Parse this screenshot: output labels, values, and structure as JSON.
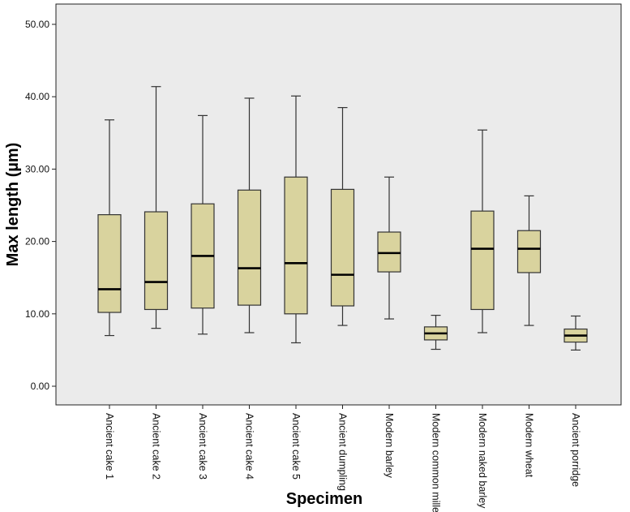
{
  "chart_data": {
    "type": "boxplot",
    "title": "",
    "xlabel": "Specimen",
    "ylabel": "Max length (µm)",
    "ylim": [
      0,
      50
    ],
    "yticks": [
      0,
      10,
      20,
      30,
      40,
      50
    ],
    "ytick_labels": [
      "0.00",
      "10.00",
      "20.00",
      "30.00",
      "40.00",
      "50.00"
    ],
    "grid": false,
    "box_color": "#d9d39e",
    "plot_background": "#ebebeb",
    "categories": [
      "Ancient cake 1",
      "Ancient cake 2",
      "Ancient cake 3",
      "Ancient cake 4",
      "Ancient cake 5",
      "Ancient dumpling",
      "Modern barley",
      "Modern common millet",
      "Modern naked barley",
      "Modern wheat",
      "Ancient porridge"
    ],
    "boxes": [
      {
        "min": 7.0,
        "q1": 10.2,
        "median": 13.4,
        "q3": 23.7,
        "max": 36.8
      },
      {
        "min": 8.0,
        "q1": 10.6,
        "median": 14.4,
        "q3": 24.1,
        "max": 41.4
      },
      {
        "min": 7.2,
        "q1": 10.8,
        "median": 18.0,
        "q3": 25.2,
        "max": 37.4
      },
      {
        "min": 7.4,
        "q1": 11.2,
        "median": 16.3,
        "q3": 27.1,
        "max": 39.8
      },
      {
        "min": 6.0,
        "q1": 10.0,
        "median": 17.0,
        "q3": 28.9,
        "max": 40.1
      },
      {
        "min": 8.4,
        "q1": 11.1,
        "median": 15.4,
        "q3": 27.2,
        "max": 38.5
      },
      {
        "min": 9.3,
        "q1": 15.8,
        "median": 18.4,
        "q3": 21.3,
        "max": 28.9
      },
      {
        "min": 5.1,
        "q1": 6.4,
        "median": 7.3,
        "q3": 8.2,
        "max": 9.8
      },
      {
        "min": 7.4,
        "q1": 10.6,
        "median": 19.0,
        "q3": 24.2,
        "max": 35.4
      },
      {
        "min": 8.4,
        "q1": 15.7,
        "median": 19.0,
        "q3": 21.5,
        "max": 26.3
      },
      {
        "min": 5.0,
        "q1": 6.1,
        "median": 7.0,
        "q3": 7.9,
        "max": 9.7
      }
    ]
  }
}
